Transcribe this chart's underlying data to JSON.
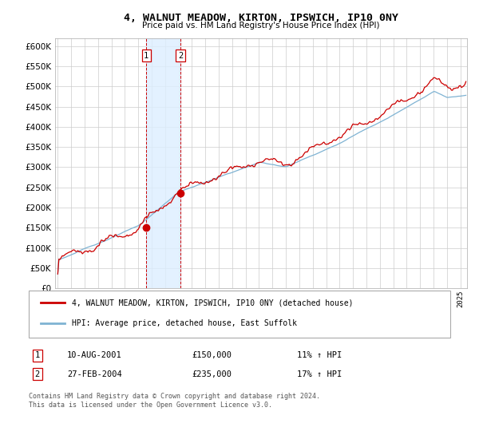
{
  "title": "4, WALNUT MEADOW, KIRTON, IPSWICH, IP10 0NY",
  "subtitle": "Price paid vs. HM Land Registry's House Price Index (HPI)",
  "legend_line1": "4, WALNUT MEADOW, KIRTON, IPSWICH, IP10 0NY (detached house)",
  "legend_line2": "HPI: Average price, detached house, East Suffolk",
  "transaction1_label": "1",
  "transaction1_date": "10-AUG-2001",
  "transaction1_price": "£150,000",
  "transaction1_hpi": "11% ↑ HPI",
  "transaction1_year": 2001.6,
  "transaction1_value": 150000,
  "transaction2_label": "2",
  "transaction2_date": "27-FEB-2004",
  "transaction2_price": "£235,000",
  "transaction2_hpi": "17% ↑ HPI",
  "transaction2_year": 2004.15,
  "transaction2_value": 235000,
  "footer": "Contains HM Land Registry data © Crown copyright and database right 2024.\nThis data is licensed under the Open Government Licence v3.0.",
  "title_color": "#000000",
  "line1_color": "#cc0000",
  "line2_color": "#7fb3d3",
  "shade_color": "#ddeeff",
  "grid_color": "#cccccc",
  "background_color": "#ffffff",
  "ylim": [
    0,
    620000
  ],
  "yticks": [
    0,
    50000,
    100000,
    150000,
    200000,
    250000,
    300000,
    350000,
    400000,
    450000,
    500000,
    550000,
    600000
  ],
  "xlim_start": 1994.8,
  "xlim_end": 2025.5
}
